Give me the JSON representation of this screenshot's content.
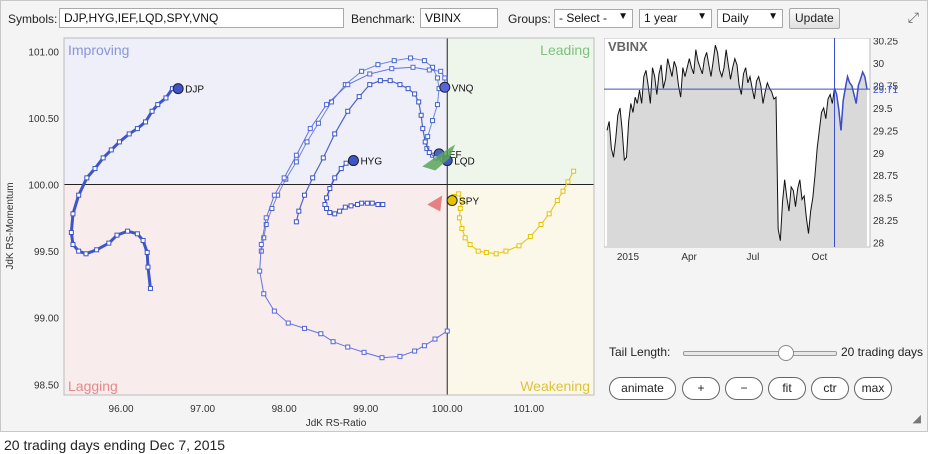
{
  "toolbar": {
    "symbols_label": "Symbols:",
    "symbols_value": "DJP,HYG,IEF,LQD,SPY,VNQ",
    "benchmark_label": "Benchmark:",
    "benchmark_value": "VBINX",
    "groups_label": "Groups:",
    "groups_value": "- Select -",
    "period_value": "1 year",
    "frequency_value": "Daily",
    "update_label": "Update"
  },
  "chart_data": [
    {
      "type": "scatter",
      "title": "",
      "xlabel": "JdK RS-Ratio",
      "ylabel": "JdK RS-Momentum",
      "xlim": [
        95.3,
        101.8
      ],
      "ylim": [
        98.42,
        101.1
      ],
      "xticks": [
        "96.00",
        "97.00",
        "98.00",
        "99.00",
        "100.00",
        "101.00"
      ],
      "yticks": [
        "98.50",
        "99.00",
        "99.50",
        "100.00",
        "100.50",
        "101.00"
      ],
      "grid": false,
      "center": [
        100,
        100
      ],
      "quadrants": {
        "top_left": "Improving",
        "top_right": "Leading",
        "bottom_left": "Lagging",
        "bottom_right": "Weakening"
      },
      "series": [
        {
          "name": "DJP",
          "color": "#3d55c8",
          "points": [
            [
              96.36,
              99.22
            ],
            [
              96.33,
              99.38
            ],
            [
              96.32,
              99.49
            ],
            [
              96.27,
              99.58
            ],
            [
              96.2,
              99.63
            ],
            [
              96.08,
              99.65
            ],
            [
              95.95,
              99.62
            ],
            [
              95.85,
              99.56
            ],
            [
              95.7,
              99.51
            ],
            [
              95.57,
              99.48
            ],
            [
              95.48,
              99.5
            ],
            [
              95.41,
              99.55
            ],
            [
              95.39,
              99.64
            ],
            [
              95.41,
              99.78
            ],
            [
              95.48,
              99.92
            ],
            [
              95.58,
              100.05
            ],
            [
              95.68,
              100.12
            ],
            [
              95.78,
              100.2
            ],
            [
              95.88,
              100.26
            ],
            [
              95.98,
              100.32
            ],
            [
              96.1,
              100.38
            ],
            [
              96.2,
              100.42
            ],
            [
              96.3,
              100.47
            ],
            [
              96.38,
              100.55
            ],
            [
              96.45,
              100.6
            ],
            [
              96.55,
              100.65
            ],
            [
              96.63,
              100.72
            ],
            [
              96.7,
              100.72
            ]
          ]
        },
        {
          "name": "HYG",
          "color": "#3d55c8",
          "points": [
            [
              99.21,
              99.85
            ],
            [
              99.15,
              99.85
            ],
            [
              99.08,
              99.86
            ],
            [
              99.02,
              99.86
            ],
            [
              98.95,
              99.86
            ],
            [
              98.9,
              99.85
            ],
            [
              98.82,
              99.84
            ],
            [
              98.75,
              99.83
            ],
            [
              98.68,
              99.8
            ],
            [
              98.62,
              99.78
            ],
            [
              98.56,
              99.79
            ],
            [
              98.52,
              99.82
            ],
            [
              98.5,
              99.85
            ],
            [
              98.52,
              99.9
            ],
            [
              98.56,
              99.97
            ],
            [
              98.62,
              100.05
            ],
            [
              98.7,
              100.12
            ],
            [
              98.76,
              100.16
            ],
            [
              98.82,
              100.18
            ],
            [
              98.85,
              100.18
            ]
          ]
        },
        {
          "name": "IEF",
          "color": "#4466cc",
          "points": [
            [
              97.72,
              99.5
            ],
            [
              97.75,
              99.6
            ],
            [
              97.78,
              99.7
            ],
            [
              97.85,
              99.82
            ],
            [
              97.92,
              99.92
            ],
            [
              98.02,
              100.04
            ],
            [
              98.15,
              100.17
            ],
            [
              98.28,
              100.32
            ],
            [
              98.42,
              100.46
            ],
            [
              98.58,
              100.62
            ],
            [
              98.75,
              100.75
            ],
            [
              98.95,
              100.85
            ],
            [
              99.15,
              100.9
            ],
            [
              99.35,
              100.93
            ],
            [
              99.55,
              100.95
            ],
            [
              99.72,
              100.93
            ],
            [
              99.82,
              100.88
            ],
            [
              99.88,
              100.8
            ],
            [
              99.9,
              100.72
            ],
            [
              99.88,
              100.6
            ],
            [
              99.82,
              100.48
            ],
            [
              99.76,
              100.36
            ],
            [
              99.75,
              100.27
            ],
            [
              99.82,
              100.22
            ],
            [
              99.9,
              100.23
            ]
          ]
        },
        {
          "name": "LQD",
          "color": "#3d55c8",
          "points": [
            [
              98.15,
              99.72
            ],
            [
              98.18,
              99.8
            ],
            [
              98.25,
              99.92
            ],
            [
              98.35,
              100.05
            ],
            [
              98.48,
              100.2
            ],
            [
              98.62,
              100.38
            ],
            [
              98.78,
              100.55
            ],
            [
              98.92,
              100.66
            ],
            [
              99.05,
              100.75
            ],
            [
              99.18,
              100.78
            ],
            [
              99.3,
              100.78
            ],
            [
              99.42,
              100.75
            ],
            [
              99.52,
              100.72
            ],
            [
              99.6,
              100.68
            ],
            [
              99.65,
              100.62
            ],
            [
              99.68,
              100.52
            ],
            [
              99.7,
              100.42
            ],
            [
              99.73,
              100.32
            ],
            [
              99.78,
              100.24
            ],
            [
              99.86,
              100.2
            ],
            [
              99.94,
              100.19
            ],
            [
              100.0,
              100.18
            ]
          ]
        },
        {
          "name": "VNQ",
          "color": "#5566dd",
          "points": [
            [
              100.0,
              98.9
            ],
            [
              99.85,
              98.84
            ],
            [
              99.72,
              98.79
            ],
            [
              99.6,
              98.75
            ],
            [
              99.42,
              98.71
            ],
            [
              99.2,
              98.7
            ],
            [
              98.98,
              98.74
            ],
            [
              98.78,
              98.78
            ],
            [
              98.6,
              98.82
            ],
            [
              98.45,
              98.88
            ],
            [
              98.25,
              98.92
            ],
            [
              98.05,
              98.96
            ],
            [
              97.88,
              99.05
            ],
            [
              97.75,
              99.18
            ],
            [
              97.7,
              99.35
            ],
            [
              97.72,
              99.55
            ],
            [
              97.78,
              99.75
            ],
            [
              97.88,
              99.92
            ],
            [
              98.0,
              100.05
            ],
            [
              98.15,
              100.22
            ],
            [
              98.32,
              100.42
            ],
            [
              98.52,
              100.6
            ],
            [
              98.78,
              100.75
            ],
            [
              99.05,
              100.83
            ],
            [
              99.32,
              100.87
            ],
            [
              99.58,
              100.88
            ],
            [
              99.78,
              100.86
            ],
            [
              99.92,
              100.85
            ],
            [
              99.97,
              100.8
            ],
            [
              99.97,
              100.73
            ]
          ]
        },
        {
          "name": "SPY",
          "color": "#e6c200",
          "points": [
            [
              101.55,
              100.1
            ],
            [
              101.48,
              100.02
            ],
            [
              101.42,
              99.95
            ],
            [
              101.35,
              99.88
            ],
            [
              101.25,
              99.78
            ],
            [
              101.15,
              99.7
            ],
            [
              101.02,
              99.61
            ],
            [
              100.88,
              99.54
            ],
            [
              100.72,
              99.5
            ],
            [
              100.6,
              99.48
            ],
            [
              100.48,
              99.49
            ],
            [
              100.38,
              99.5
            ],
            [
              100.28,
              99.55
            ],
            [
              100.22,
              99.6
            ],
            [
              100.18,
              99.67
            ],
            [
              100.15,
              99.75
            ],
            [
              100.16,
              99.82
            ],
            [
              100.18,
              99.88
            ],
            [
              100.14,
              99.93
            ],
            [
              100.08,
              99.91
            ],
            [
              100.06,
              99.88
            ]
          ]
        }
      ]
    },
    {
      "type": "area",
      "title": "VBINX",
      "xticks": [
        "2015",
        "Apr",
        "Jul",
        "Oct"
      ],
      "yticks": [
        "30.25",
        "30",
        "29.75",
        "29.5",
        "29.25",
        "29",
        "28.75",
        "28.5",
        "28.25",
        "28"
      ],
      "ylim": [
        27.95,
        30.28
      ],
      "last_value": "29.71",
      "values": [
        29.25,
        29.35,
        29.05,
        28.95,
        29.15,
        29.42,
        29.5,
        29.25,
        28.92,
        28.95,
        29.35,
        29.55,
        29.45,
        29.62,
        29.55,
        29.7,
        29.55,
        29.85,
        29.92,
        29.75,
        29.55,
        29.95,
        29.85,
        29.65,
        29.88,
        29.98,
        29.72,
        29.82,
        30.05,
        29.95,
        29.85,
        30.02,
        29.95,
        29.75,
        29.62,
        29.95,
        29.85,
        29.95,
        30.05,
        29.95,
        29.88,
        30.15,
        30.02,
        29.95,
        29.88,
        30.05,
        30.12,
        29.98,
        29.85,
        30.02,
        30.2,
        30.12,
        29.92,
        29.85,
        29.95,
        30.15,
        29.98,
        29.82,
        29.95,
        30.05,
        29.98,
        29.75,
        29.65,
        29.88,
        29.95,
        29.78,
        29.85,
        29.72,
        29.6,
        29.8,
        29.85,
        29.75,
        29.55,
        29.68,
        29.78,
        29.72,
        29.68,
        29.6,
        29.62,
        28.15,
        28.02,
        28.45,
        28.7,
        28.5,
        28.35,
        28.62,
        28.58,
        28.4,
        28.6,
        28.7,
        28.48,
        28.52,
        28.28,
        28.1,
        28.35,
        28.5,
        28.75,
        29.05,
        29.25,
        29.45,
        29.5,
        29.38,
        29.6,
        29.65,
        29.55,
        29.72,
        29.65,
        29.48,
        29.25,
        29.58,
        29.72,
        29.85,
        29.78,
        29.75,
        29.65,
        29.55,
        29.75,
        29.82,
        29.9,
        29.85,
        29.71
      ]
    }
  ],
  "controls": {
    "tail_length_label": "Tail Length:",
    "tail_value": "20 trading days",
    "tail_fraction": 0.67,
    "buttons": [
      "animate",
      "+",
      "−",
      "fit",
      "ctr",
      "max"
    ]
  },
  "footer": "20 trading days ending Dec 7, 2015",
  "colors": {
    "improving_bg": "#eeeff8",
    "leading_bg": "#eef6ec",
    "lagging_bg": "#f9ecec",
    "weakening_bg": "#fbf8ea",
    "improving_text": "#8896d8",
    "leading_text": "#7fc17f",
    "lagging_text": "#e58a8a",
    "weakening_text": "#e0c13b",
    "series_blue": "#3d55c8",
    "spy_yellow": "#e6c200",
    "benchmark_line": "#3b4fc8"
  }
}
